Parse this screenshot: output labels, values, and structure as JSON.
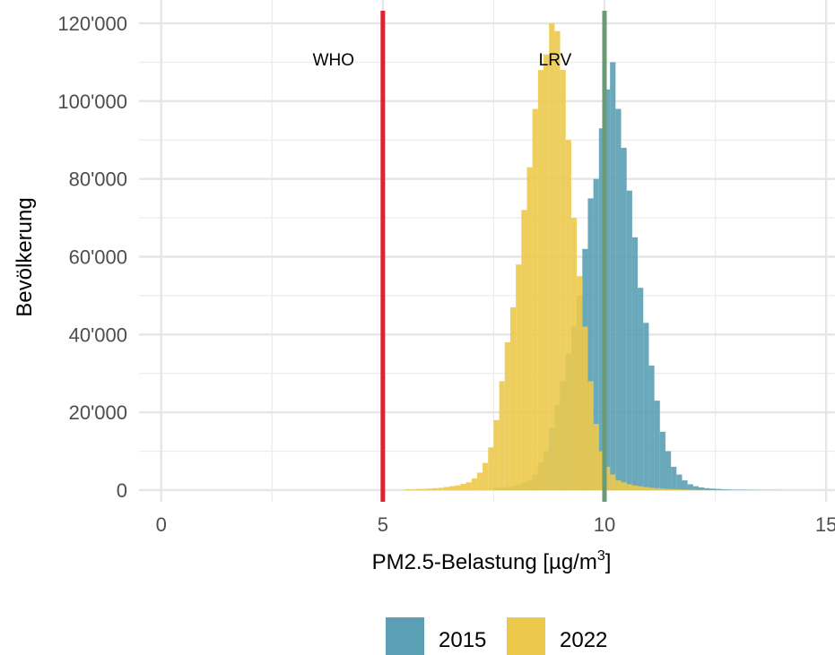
{
  "chart_data": {
    "type": "bar",
    "subtype": "overlaid-histogram",
    "xlabel": "PM2.5-Belastung [µg/m",
    "xlabel_superscript": "3",
    "xlabel_suffix": "]",
    "ylabel": "Bevölkerung",
    "xlim": [
      -0.5,
      15.2
    ],
    "ylim": [
      -3000,
      126000
    ],
    "x_ticks": [
      0,
      5,
      10,
      15
    ],
    "x_tick_labels": [
      "0",
      "5",
      "10",
      "15"
    ],
    "y_ticks": [
      0,
      20000,
      40000,
      60000,
      80000,
      100000,
      120000
    ],
    "y_tick_labels": [
      "0",
      "20'000",
      "40'000",
      "60'000",
      "80'000",
      "100'000",
      "120'000"
    ],
    "grid": true,
    "legend_position": "bottom",
    "bin_width": 0.125,
    "reference_lines": [
      {
        "label": "WHO",
        "x": 5,
        "color": "#e0242f"
      },
      {
        "label": "LRV",
        "x": 10,
        "color": "#6b9a76"
      }
    ],
    "series": [
      {
        "name": "2015",
        "color": "#5a9fb4",
        "bin_start": 7.5,
        "values": [
          600,
          600,
          800,
          1000,
          1500,
          2000,
          2500,
          4000,
          7000,
          10000,
          16000,
          22000,
          28000,
          35000,
          42000,
          50000,
          62000,
          75000,
          80000,
          93000,
          103000,
          110000,
          98000,
          88000,
          77000,
          65000,
          52000,
          43000,
          32000,
          23000,
          15000,
          10000,
          6000,
          4000,
          2500,
          1500,
          1000,
          700,
          500,
          400,
          300,
          200,
          150,
          100,
          100,
          80,
          60,
          50,
          40,
          30,
          20,
          20
        ]
      },
      {
        "name": "2022",
        "color": "#ecc94b",
        "bin_start": 5.5,
        "values": [
          200,
          200,
          300,
          300,
          400,
          500,
          600,
          800,
          1000,
          1200,
          1600,
          2000,
          3000,
          4500,
          7000,
          11000,
          18000,
          28000,
          38000,
          47000,
          58000,
          72000,
          83000,
          98000,
          108000,
          112000,
          120000,
          118000,
          108000,
          90000,
          70000,
          55000,
          42000,
          28000,
          17000,
          10000,
          6000,
          4000,
          2500,
          2000,
          1500,
          1200,
          1000,
          800,
          600,
          500,
          400,
          300,
          250,
          200,
          150,
          100,
          80,
          60,
          40,
          30
        ]
      }
    ]
  }
}
